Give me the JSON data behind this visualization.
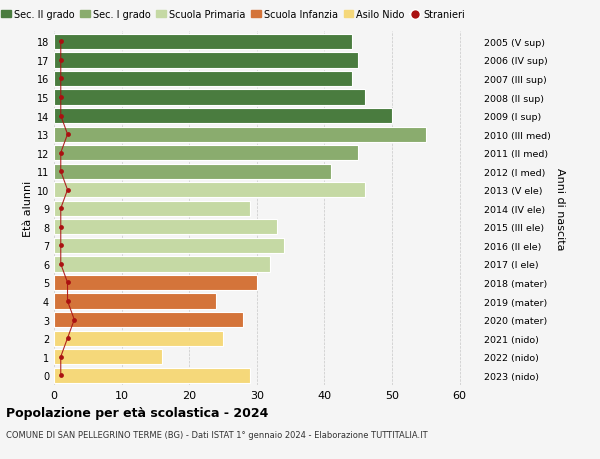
{
  "ages": [
    18,
    17,
    16,
    15,
    14,
    13,
    12,
    11,
    10,
    9,
    8,
    7,
    6,
    5,
    4,
    3,
    2,
    1,
    0
  ],
  "values": [
    44,
    45,
    44,
    46,
    50,
    55,
    45,
    41,
    46,
    29,
    33,
    34,
    32,
    30,
    24,
    28,
    25,
    16,
    29
  ],
  "stranieri_x": [
    1,
    1,
    1,
    1,
    1,
    2,
    1,
    1,
    2,
    1,
    1,
    1,
    1,
    2,
    2,
    3,
    2,
    1,
    1
  ],
  "right_labels": [
    "2005 (V sup)",
    "2006 (IV sup)",
    "2007 (III sup)",
    "2008 (II sup)",
    "2009 (I sup)",
    "2010 (III med)",
    "2011 (II med)",
    "2012 (I med)",
    "2013 (V ele)",
    "2014 (IV ele)",
    "2015 (III ele)",
    "2016 (II ele)",
    "2017 (I ele)",
    "2018 (mater)",
    "2019 (mater)",
    "2020 (mater)",
    "2021 (nido)",
    "2022 (nido)",
    "2023 (nido)"
  ],
  "bar_colors": [
    "#4a7c3f",
    "#4a7c3f",
    "#4a7c3f",
    "#4a7c3f",
    "#4a7c3f",
    "#8aac6e",
    "#8aac6e",
    "#8aac6e",
    "#c5d9a4",
    "#c5d9a4",
    "#c5d9a4",
    "#c5d9a4",
    "#c5d9a4",
    "#d4743a",
    "#d4743a",
    "#d4743a",
    "#f5d87a",
    "#f5d87a",
    "#f5d87a"
  ],
  "legend_labels": [
    "Sec. II grado",
    "Sec. I grado",
    "Scuola Primaria",
    "Scuola Infanzia",
    "Asilo Nido",
    "Stranieri"
  ],
  "legend_colors": [
    "#4a7c3f",
    "#8aac6e",
    "#c5d9a4",
    "#d4743a",
    "#f5d87a",
    "#aa1111"
  ],
  "stranieri_color": "#aa1111",
  "stranieri_line_color": "#aa1111",
  "title": "Popolazione per età scolastica - 2024",
  "subtitle": "COMUNE DI SAN PELLEGRINO TERME (BG) - Dati ISTAT 1° gennaio 2024 - Elaborazione TUTTITALIA.IT",
  "ylabel_left": "Età alunni",
  "ylabel_right": "Anni di nascita",
  "xlim": [
    0,
    63
  ],
  "xticks": [
    0,
    10,
    20,
    30,
    40,
    50,
    60
  ],
  "bg_color": "#f5f5f5",
  "bar_height": 0.82
}
